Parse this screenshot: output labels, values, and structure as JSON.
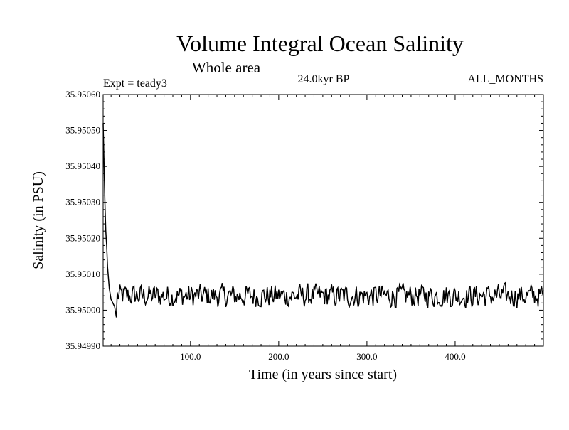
{
  "chart_data": {
    "type": "line",
    "title": "Volume Integral Ocean Salinity",
    "subtitle": "Whole area",
    "experiment": "Expt = teady3",
    "period": "24.0kyr BP",
    "months": "ALL_MONTHS",
    "xlabel": "Time (in years since start)",
    "ylabel": "Salinity (in PSU)",
    "xlim": [
      1,
      500
    ],
    "ylim": [
      35.9499,
      35.9506
    ],
    "xticks": [
      100,
      200,
      300,
      400
    ],
    "xtick_labels": [
      "100.0",
      "200.0",
      "300.0",
      "400.0"
    ],
    "yticks": [
      35.9499,
      35.95,
      35.9501,
      35.9502,
      35.9503,
      35.9504,
      35.9505,
      35.9506
    ],
    "ytick_labels": [
      "35.94990",
      "35.95000",
      "35.95010",
      "35.95020",
      "35.95030",
      "35.95040",
      "35.95050",
      "35.95060"
    ],
    "series": [
      {
        "name": "Salinity",
        "description_points": [
          [
            1,
            35.95052
          ],
          [
            2,
            35.95041
          ],
          [
            3,
            35.9503
          ],
          [
            4,
            35.95022
          ],
          [
            5,
            35.95018
          ],
          [
            6,
            35.95012
          ],
          [
            8,
            35.95006
          ],
          [
            10,
            35.95003
          ],
          [
            14,
            35.95001
          ],
          [
            16,
            35.94998
          ]
        ],
        "baseline": 35.95004,
        "noise_amplitude": 4e-05
      }
    ]
  }
}
